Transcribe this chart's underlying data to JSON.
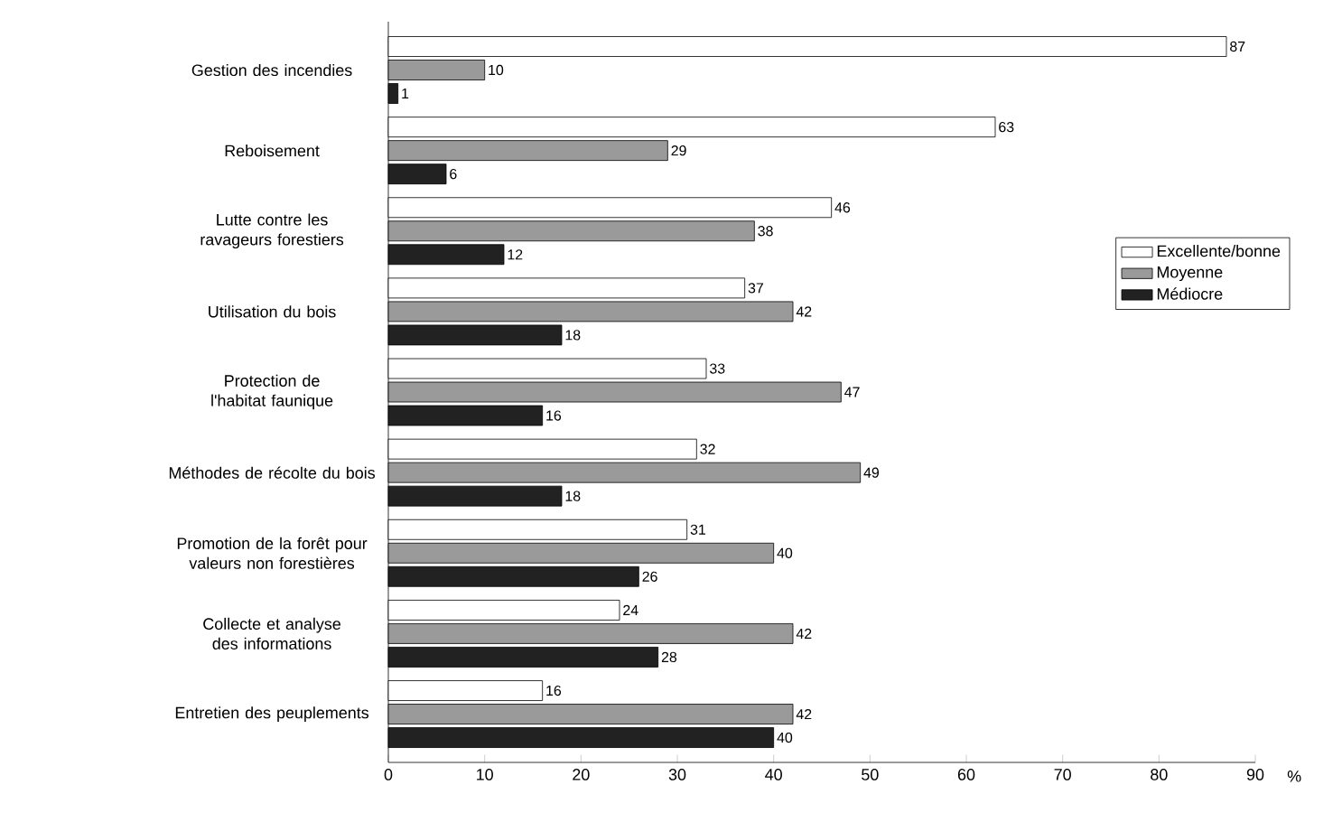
{
  "chart_data": {
    "type": "bar",
    "orientation": "horizontal",
    "xlabel": "%",
    "categories": [
      "Gestion des incendies",
      "Reboisement",
      "Lutte contre les ravageurs forestiers",
      "Utilisation du bois",
      "Protection de l'habitat faunique",
      "Méthodes de récolte du bois",
      "Promotion de la forêt pour valeurs non forestières",
      "Collecte et analyse des informations",
      "Entretien des peuplements"
    ],
    "series": [
      {
        "name": "Excellente/bonne",
        "color": "#ffffff",
        "values": [
          87,
          63,
          46,
          37,
          33,
          32,
          31,
          24,
          16
        ]
      },
      {
        "name": "Moyenne",
        "color": "#9a9a9a",
        "values": [
          10,
          29,
          38,
          42,
          47,
          49,
          40,
          42,
          42
        ]
      },
      {
        "name": "Médiocre",
        "color": "#222222",
        "values": [
          1,
          6,
          12,
          18,
          16,
          18,
          26,
          28,
          40
        ]
      }
    ],
    "xlim": [
      0,
      90
    ],
    "xticks": [
      0,
      10,
      20,
      30,
      40,
      50,
      60,
      70,
      80,
      90
    ],
    "data_labels": true,
    "legend": "right",
    "grid": false
  }
}
